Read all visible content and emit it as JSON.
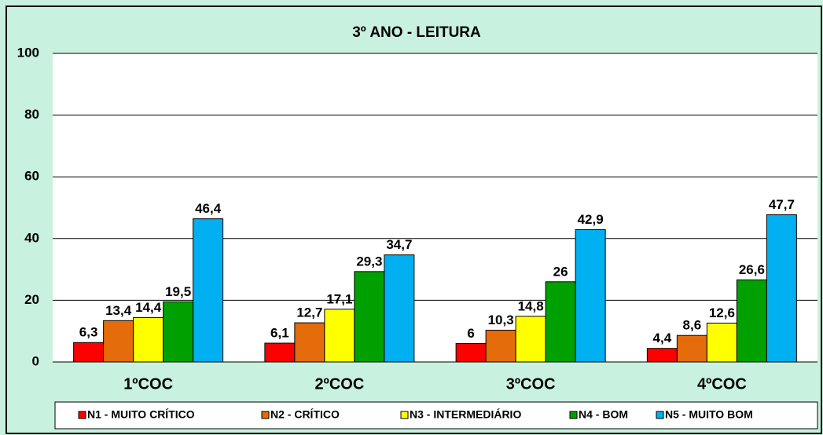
{
  "chart_data": {
    "type": "bar",
    "title": "3º ANO - LEITURA",
    "categories": [
      "1ºCOC",
      "2ºCOC",
      "3ºCOC",
      "4ºCOC"
    ],
    "series": [
      {
        "name": "N1 - MUITO CRÍTICO",
        "color": "#ff0000",
        "values": [
          6.3,
          6.1,
          6,
          4.4
        ],
        "value_labels": [
          "6,3",
          "6,1",
          "6",
          "4,4"
        ]
      },
      {
        "name": "N2 - CRÍTICO",
        "color": "#e46c0a",
        "values": [
          13.4,
          12.7,
          10.3,
          8.6
        ],
        "value_labels": [
          "13,4",
          "12,7",
          "10,3",
          "8,6"
        ]
      },
      {
        "name": "N3 - INTERMEDIÁRIO",
        "color": "#ffff00",
        "values": [
          14.4,
          17.1,
          14.8,
          12.6
        ],
        "value_labels": [
          "14,4",
          "17,1",
          "14,8",
          "12,6"
        ]
      },
      {
        "name": "N4 - BOM",
        "color": "#00a000",
        "values": [
          19.5,
          29.3,
          26,
          26.6
        ],
        "value_labels": [
          "19,5",
          "29,3",
          "26",
          "26,6"
        ]
      },
      {
        "name": "N5 - MUITO BOM",
        "color": "#00b0f0",
        "values": [
          46.4,
          34.7,
          42.9,
          47.7
        ],
        "value_labels": [
          "46,4",
          "34,7",
          "42,9",
          "47,7"
        ]
      }
    ],
    "ylim": [
      0,
      100
    ],
    "yticks": [
      0,
      20,
      40,
      60,
      80,
      100
    ],
    "grid": true,
    "legend": "bottom"
  }
}
